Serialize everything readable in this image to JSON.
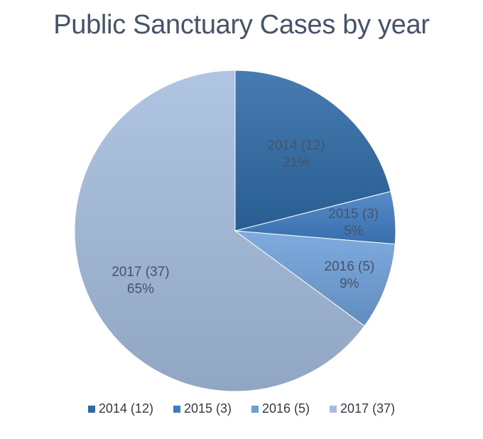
{
  "chart_data": {
    "type": "pie",
    "title": "Public Sanctuary Cases by year",
    "categories": [
      "2014 (12)",
      "2015 (3)",
      "2016 (5)",
      "2017 (37)"
    ],
    "values": [
      12,
      3,
      5,
      37
    ],
    "percent_labels": [
      "21%",
      "5%",
      "9%",
      "65%"
    ],
    "colors": [
      "#2e6aa6",
      "#3f7dc2",
      "#6e9fd9",
      "#a4bddd"
    ],
    "legend_position": "bottom",
    "start_angle": "12 o'clock",
    "direction": "clockwise"
  }
}
